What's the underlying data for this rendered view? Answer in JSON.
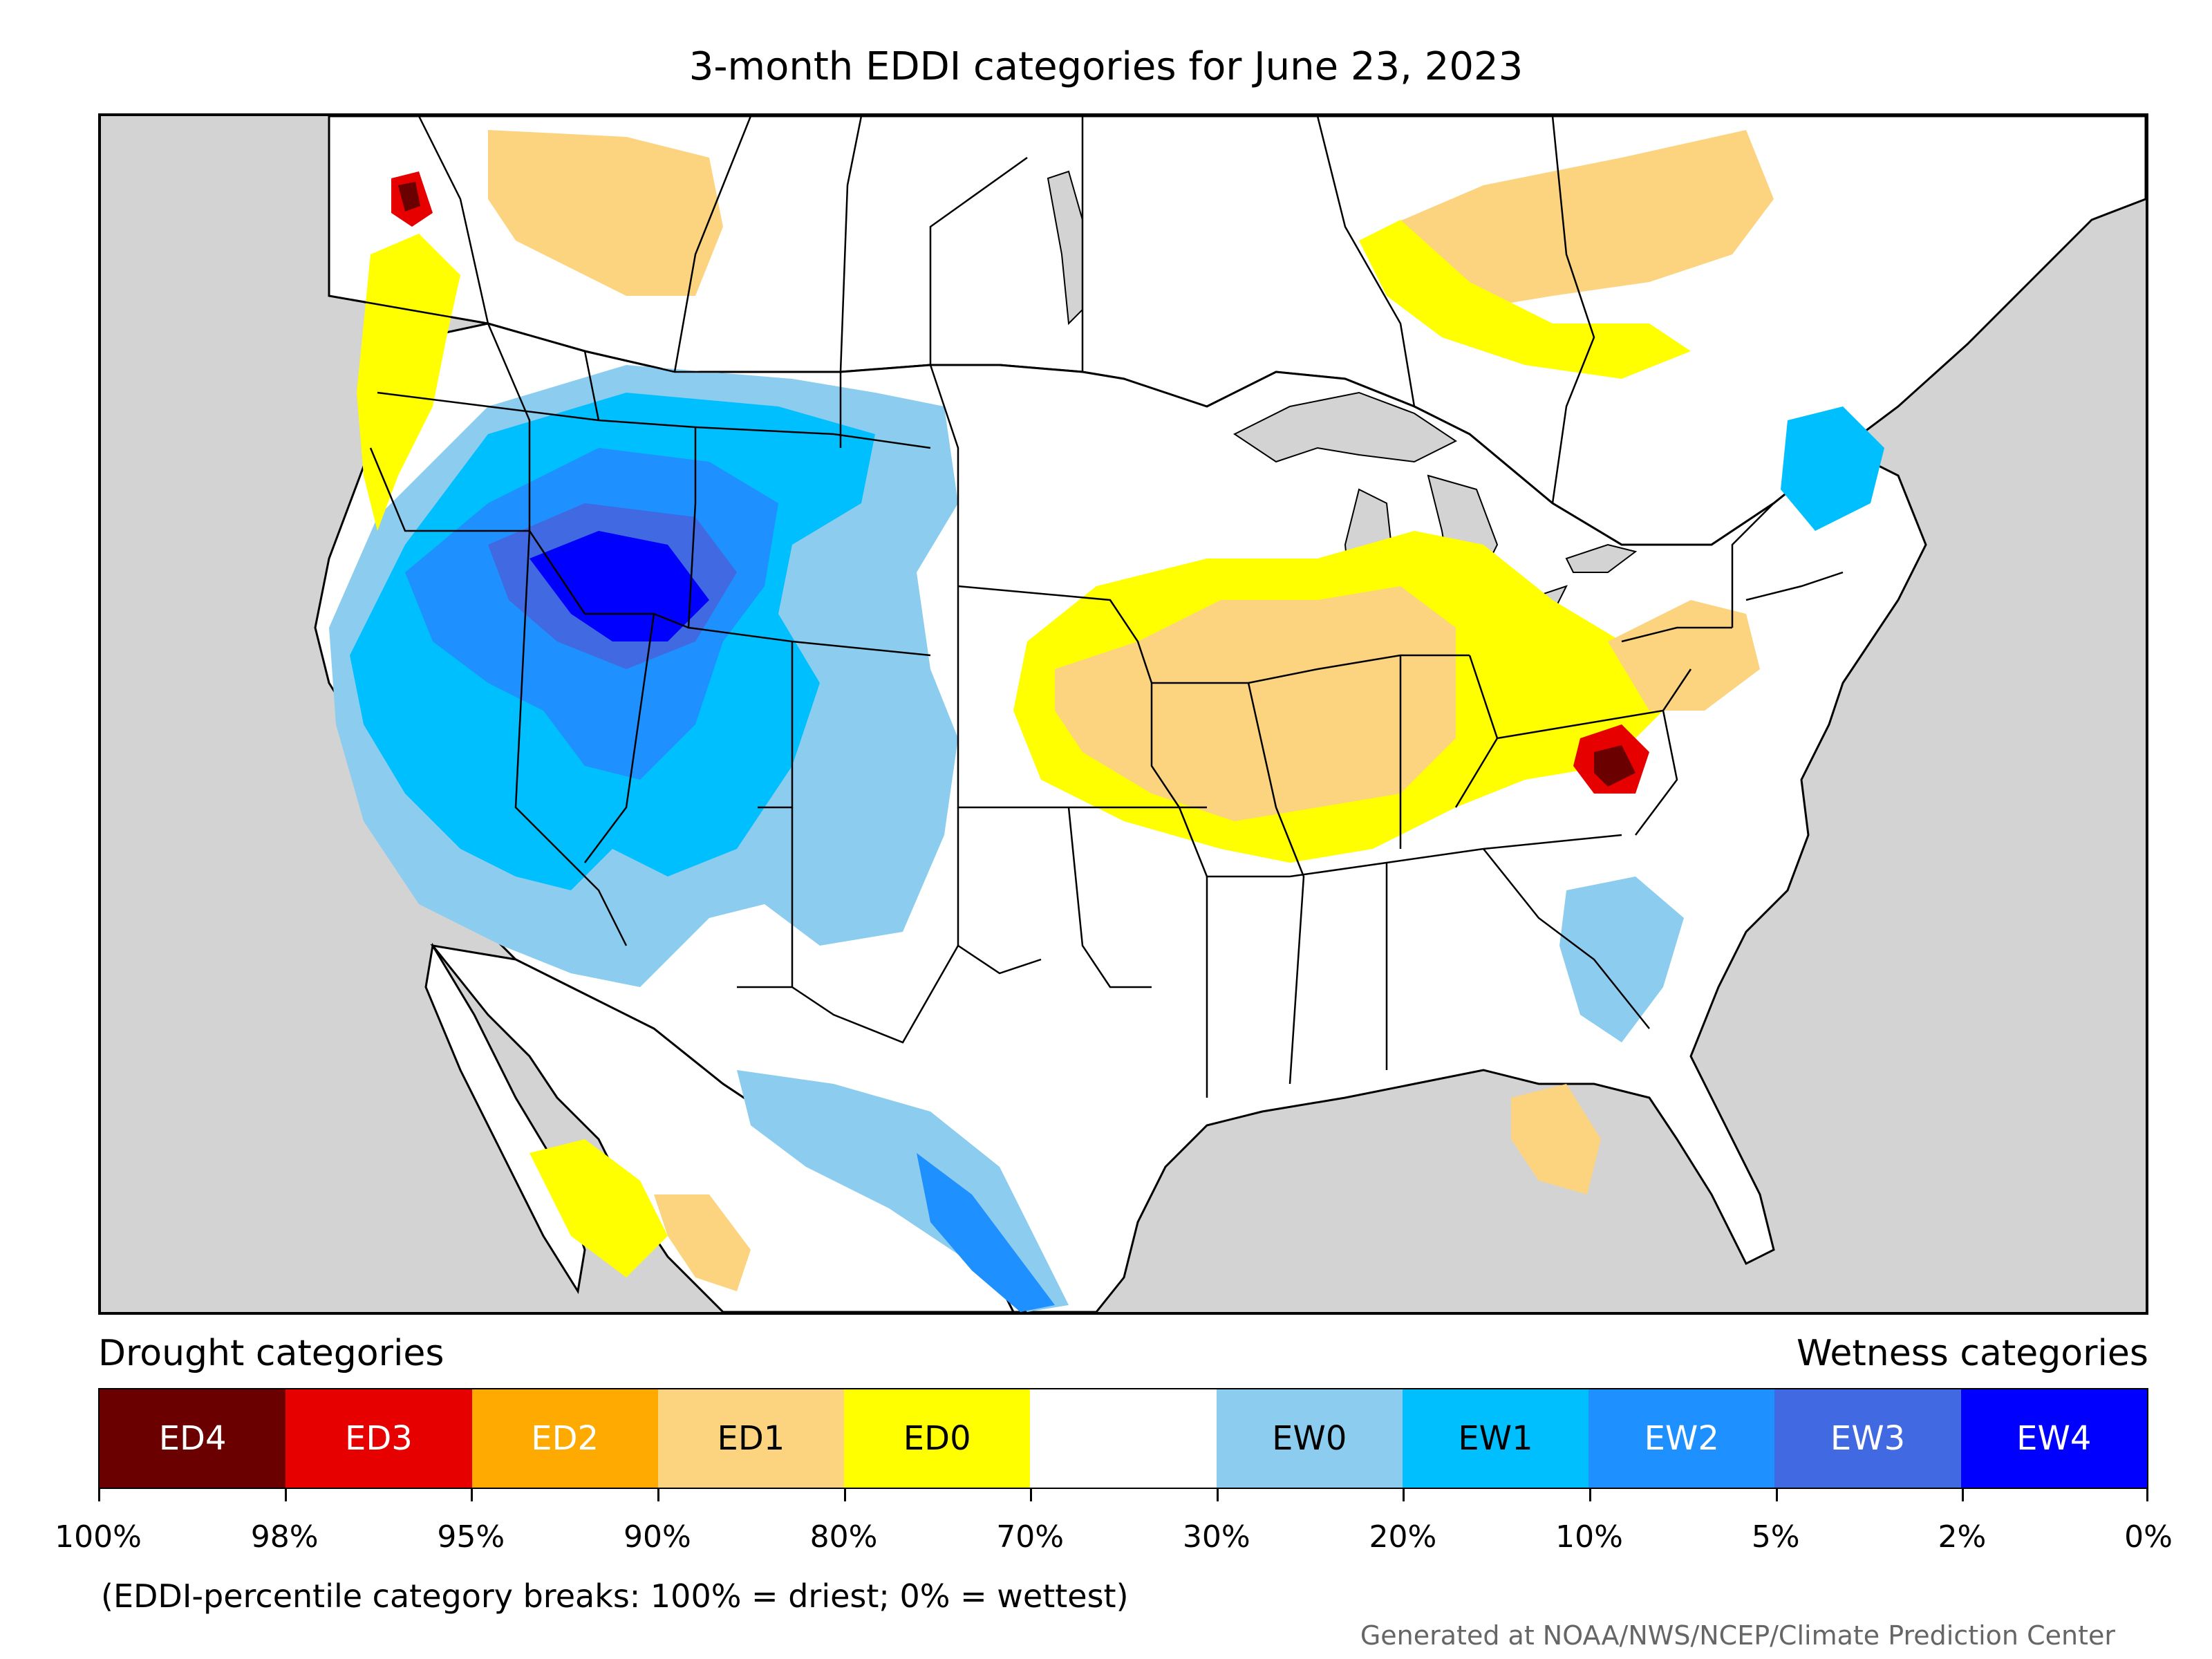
{
  "title": "3-month EDDI categories for June 23, 2023",
  "map": {
    "background_color": "#d3d3d3",
    "land_color": "#ffffff",
    "border_color": "#000000"
  },
  "legend": {
    "drought_title": "Drought categories",
    "wetness_title": "Wetness categories",
    "categories": [
      {
        "label": "ED4",
        "color": "#6b0000",
        "text_color": "#ffffff"
      },
      {
        "label": "ED3",
        "color": "#e60000",
        "text_color": "#ffffff"
      },
      {
        "label": "ED2",
        "color": "#ffaa00",
        "text_color": "#ffffff"
      },
      {
        "label": "ED1",
        "color": "#fcd37f",
        "text_color": "#000000"
      },
      {
        "label": "ED0",
        "color": "#ffff00",
        "text_color": "#000000"
      },
      {
        "label": "",
        "color": "#ffffff",
        "text_color": "#000000"
      },
      {
        "label": "EW0",
        "color": "#8ccdef",
        "text_color": "#000000"
      },
      {
        "label": "EW1",
        "color": "#00bfff",
        "text_color": "#000000"
      },
      {
        "label": "EW2",
        "color": "#1e90ff",
        "text_color": "#ffffff"
      },
      {
        "label": "EW3",
        "color": "#4169e1",
        "text_color": "#ffffff"
      },
      {
        "label": "EW4",
        "color": "#0000ff",
        "text_color": "#ffffff"
      }
    ],
    "breaks": [
      "100%",
      "98%",
      "95%",
      "90%",
      "80%",
      "70%",
      "30%",
      "20%",
      "10%",
      "5%",
      "2%",
      "0%"
    ]
  },
  "note": "(EDDI-percentile category breaks: 100% = driest; 0% = wettest)",
  "credit": "Generated at NOAA/NWS/NCEP/Climate Prediction Center"
}
